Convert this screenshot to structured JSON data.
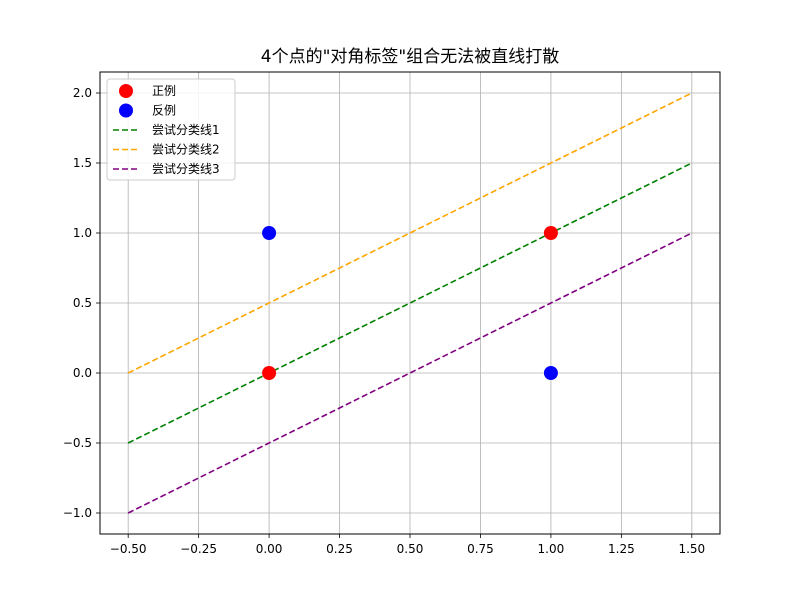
{
  "chart_data": {
    "type": "scatter",
    "title": "4个点的\"对角标签\"组合无法被直线打散",
    "xlabel": "",
    "ylabel": "",
    "xlim": [
      -0.6,
      1.6
    ],
    "ylim": [
      -1.15,
      2.15
    ],
    "x_ticks": [
      -0.5,
      -0.25,
      0.0,
      0.25,
      0.5,
      0.75,
      1.0,
      1.25,
      1.5
    ],
    "x_tick_labels": [
      "−0.50",
      "−0.25",
      "0.00",
      "0.25",
      "0.50",
      "0.75",
      "1.00",
      "1.25",
      "1.50"
    ],
    "y_ticks": [
      -1.0,
      -0.5,
      0.0,
      0.5,
      1.0,
      1.5,
      2.0
    ],
    "y_tick_labels": [
      "−1.0",
      "−0.5",
      "0.0",
      "0.5",
      "1.0",
      "1.5",
      "2.0"
    ],
    "grid": true,
    "legend_position": "upper-left",
    "points": [
      {
        "series": "正例",
        "color": "#ff0000",
        "data": [
          {
            "x": 0,
            "y": 0
          },
          {
            "x": 1,
            "y": 1
          }
        ]
      },
      {
        "series": "反例",
        "color": "#0000ff",
        "data": [
          {
            "x": 0,
            "y": 1
          },
          {
            "x": 1,
            "y": 0
          }
        ]
      }
    ],
    "lines": [
      {
        "name": "尝试分类线1",
        "color": "#008000",
        "style": "dashed",
        "x": [
          -0.5,
          1.5
        ],
        "y": [
          -0.5,
          1.5
        ]
      },
      {
        "name": "尝试分类线2",
        "color": "#ffa500",
        "style": "dashed",
        "x": [
          -0.5,
          1.5
        ],
        "y": [
          0.0,
          2.0
        ]
      },
      {
        "name": "尝试分类线3",
        "color": "#800080",
        "style": "dashed",
        "x": [
          -0.5,
          1.5
        ],
        "y": [
          -1.0,
          1.0
        ]
      }
    ],
    "legend": [
      {
        "label": "正例",
        "kind": "marker",
        "color": "#ff0000"
      },
      {
        "label": "反例",
        "kind": "marker",
        "color": "#0000ff"
      },
      {
        "label": "尝试分类线1",
        "kind": "line",
        "color": "#008000"
      },
      {
        "label": "尝试分类线2",
        "kind": "line",
        "color": "#ffa500"
      },
      {
        "label": "尝试分类线3",
        "kind": "line",
        "color": "#800080"
      }
    ]
  }
}
